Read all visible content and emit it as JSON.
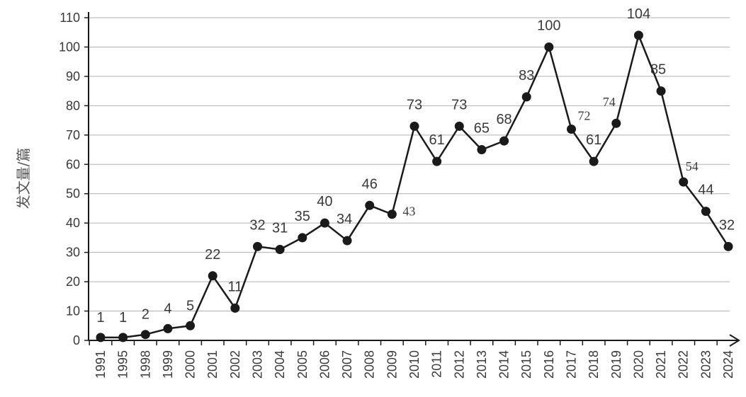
{
  "chart_data": {
    "type": "line",
    "categories": [
      "1991",
      "1995",
      "1998",
      "1999",
      "2000",
      "2001",
      "2002",
      "2003",
      "2004",
      "2005",
      "2006",
      "2007",
      "2008",
      "2009",
      "2010",
      "2011",
      "2012",
      "2013",
      "2014",
      "2015",
      "2016",
      "2017",
      "2018",
      "2019",
      "2020",
      "2021",
      "2022",
      "2023",
      "2024"
    ],
    "values": [
      1,
      1,
      2,
      4,
      5,
      22,
      11,
      32,
      31,
      35,
      40,
      34,
      46,
      43,
      73,
      61,
      73,
      65,
      68,
      83,
      100,
      72,
      61,
      74,
      104,
      85,
      54,
      44,
      32
    ],
    "data_labels": [
      "1",
      "1",
      "2",
      "4",
      "5",
      "22",
      "11",
      "32",
      "31",
      "35",
      "40",
      "34",
      "46",
      "43",
      "73",
      "61",
      "73",
      "65",
      "68",
      "83",
      "100",
      "72",
      "61",
      "74",
      "104",
      "85",
      "54",
      "44",
      "32"
    ],
    "ylabel": "发文量/篇",
    "xlabel": "",
    "ylim": [
      0,
      110
    ],
    "yticks": [
      "0",
      "10",
      "20",
      "30",
      "40",
      "50",
      "60",
      "70",
      "80",
      "90",
      "100",
      "110"
    ],
    "grid": true,
    "legend": "none",
    "colors": {
      "line": "#1a1a1a",
      "grid": "#b0b0b0",
      "axis": "#1a1a1a",
      "text": "#3a3a3a"
    }
  }
}
